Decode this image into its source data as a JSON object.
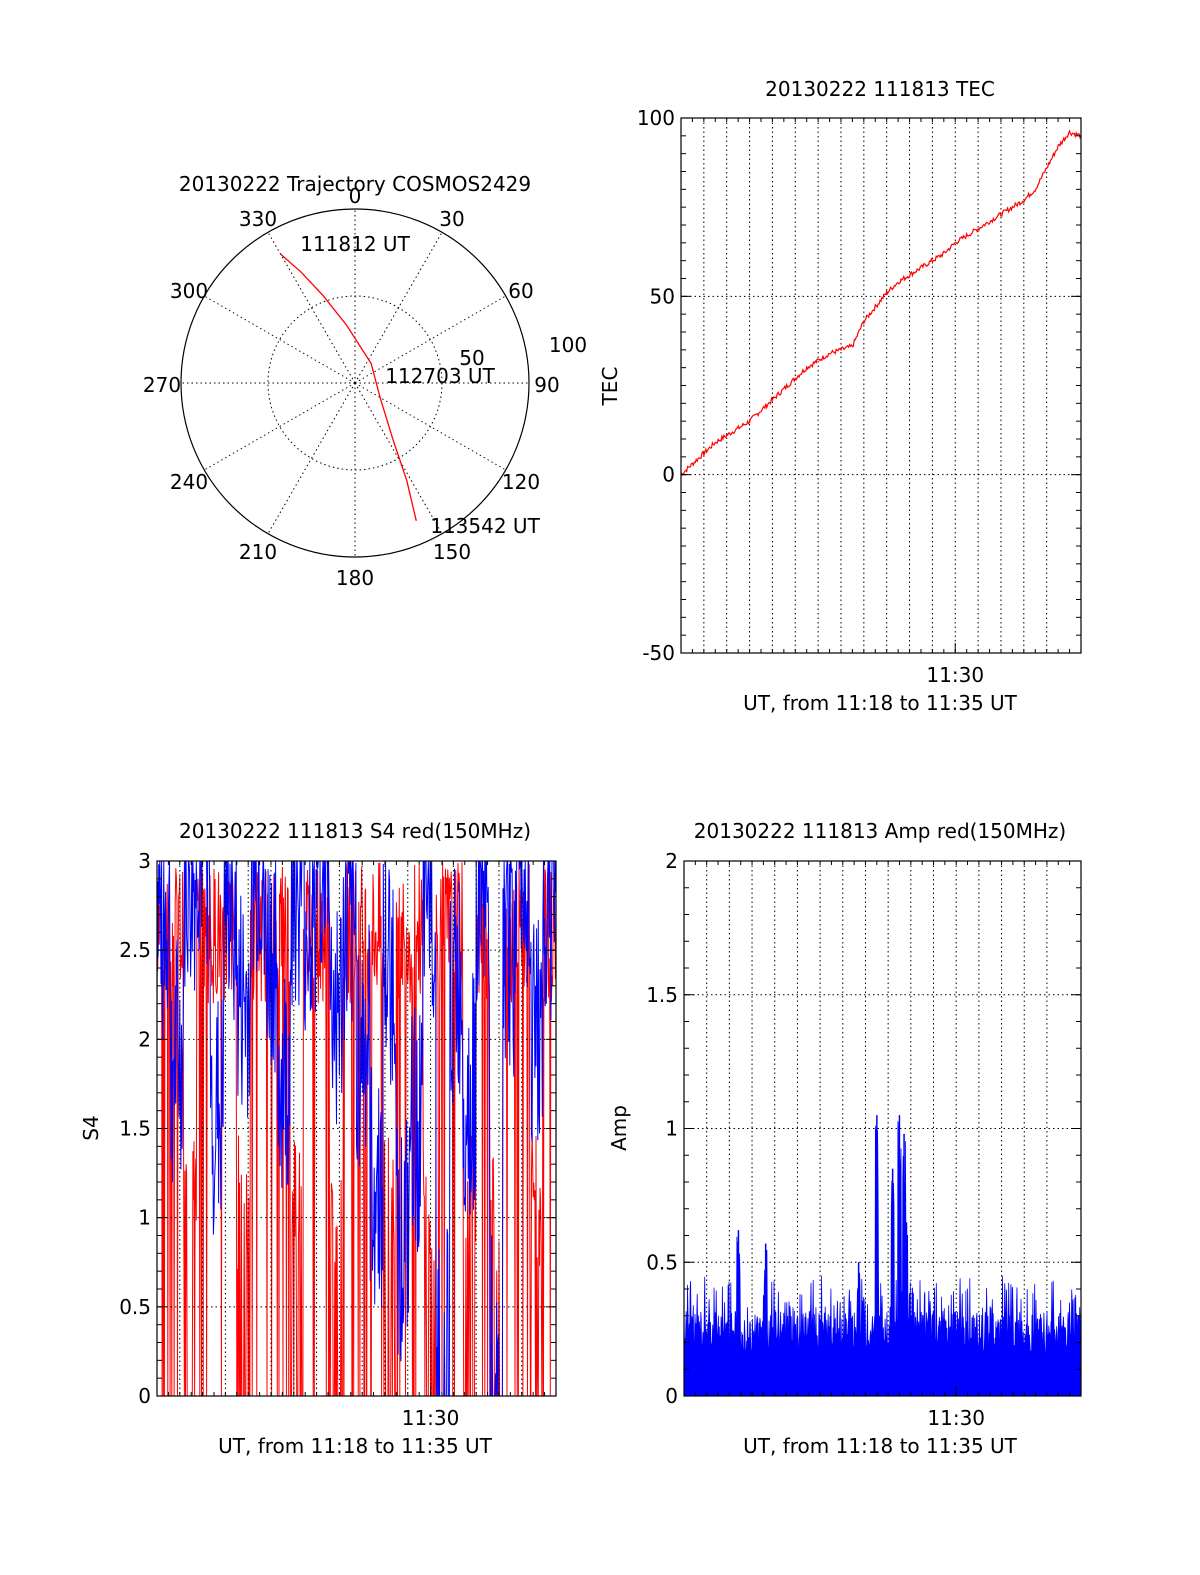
{
  "chart_data": [
    {
      "type": "polar",
      "title": "20130222 Trajectory COSMOS2429",
      "angle_labels": [
        "0",
        "30",
        "60",
        "90",
        "120",
        "150",
        "180",
        "210",
        "240",
        "270",
        "300",
        "330"
      ],
      "radius_labels": [
        "50",
        "100"
      ],
      "series": [
        {
          "color": "#ff0000",
          "points": [
            {
              "az": 330,
              "el": 13
            },
            {
              "az": 334,
              "el": 26
            },
            {
              "az": 340,
              "el": 42
            },
            {
              "az": 352,
              "el": 60
            },
            {
              "az": 40,
              "el": 77
            },
            {
              "az": 120,
              "el": 75
            },
            {
              "az": 146,
              "el": 55
            },
            {
              "az": 152,
              "el": 33
            },
            {
              "az": 156,
              "el": 12
            }
          ]
        }
      ],
      "annotations": [
        {
          "text": "111812 UT",
          "az": 338,
          "el": 2
        },
        {
          "text": "112703 UT",
          "az": 78,
          "el": 72
        },
        {
          "text": "113542 UT",
          "az": 145,
          "el": 0
        }
      ]
    },
    {
      "type": "line",
      "title": "20130222 111813 TEC",
      "ylabel": "TEC",
      "xlabel": "UT, from 11:18 to 11:35 UT",
      "ylim": [
        -50,
        100
      ],
      "yticks": [
        "-50",
        "0",
        "50",
        "100"
      ],
      "xticks": [
        {
          "label": "11:30",
          "t": 11.5
        }
      ],
      "xrange": [
        11.3,
        11.5917
      ],
      "series_color": "#ff0000",
      "x": [
        11.3,
        11.3083,
        11.3167,
        11.325,
        11.3333,
        11.3417,
        11.35,
        11.3583,
        11.3667,
        11.375,
        11.3833,
        11.3917,
        11.4,
        11.4083,
        11.4167,
        11.425,
        11.4333,
        11.4417,
        11.45,
        11.4583,
        11.4667,
        11.475,
        11.4833,
        11.4917,
        11.5,
        11.5083,
        11.5167,
        11.525,
        11.5333,
        11.5417,
        11.55,
        11.5583,
        11.5667,
        11.575,
        11.5833,
        11.5917
      ],
      "values": [
        0,
        3,
        6,
        9,
        11,
        13,
        15,
        18,
        21,
        24,
        27,
        30,
        32,
        34,
        35,
        36,
        43,
        47,
        51,
        54,
        56,
        58,
        60,
        62,
        65,
        67,
        69,
        71,
        73,
        75,
        77,
        80,
        86,
        92,
        96,
        95
      ]
    },
    {
      "type": "line",
      "title": "20130222 111813 S4 red(150MHz)",
      "ylabel": "S4",
      "xlabel": "UT, from 11:18 to 11:35 UT",
      "ylim": [
        0,
        3
      ],
      "yticks": [
        "0",
        "0.5",
        "1",
        "1.5",
        "2",
        "2.5",
        "3"
      ],
      "xticks": [
        {
          "label": "11:30",
          "t": 11.5
        }
      ],
      "xrange": [
        11.3,
        11.5917
      ],
      "series": [
        {
          "color": "#ff0000",
          "description_values": [
            3.0,
            2.9,
            0.0,
            2.8,
            3.0,
            2.6,
            0.0,
            2.7,
            2.9,
            1.4,
            0.0,
            2.8,
            3.0,
            0.0,
            2.5,
            3.0,
            2.2,
            0.0,
            2.9,
            2.4,
            0.0,
            3.0,
            1.6,
            0.0,
            2.7,
            0.0,
            3.0,
            2.8,
            0.0,
            3.0
          ]
        },
        {
          "color": "#0000ff",
          "description_values": [
            2.4,
            1.6,
            2.6,
            2.8,
            1.3,
            2.5,
            1.9,
            2.7,
            2.2,
            1.5,
            2.6,
            2.4,
            2.8,
            1.9,
            2.3,
            1.7,
            0.9,
            2.1,
            0.6,
            1.2,
            2.5,
            0.0,
            2.0,
            1.4,
            2.6,
            0.0,
            2.2,
            2.7,
            1.8,
            2.5
          ]
        }
      ]
    },
    {
      "type": "line",
      "title": "20130222 111813 Amp red(150MHz)",
      "ylabel": "Amp",
      "xlabel": "UT, from 11:18 to 11:35 UT",
      "ylim": [
        0,
        2
      ],
      "yticks": [
        "0",
        "0.5",
        "1",
        "1.5",
        "2"
      ],
      "xticks": [
        {
          "label": "11:30",
          "t": 11.5
        }
      ],
      "xrange": [
        11.3,
        11.5917
      ],
      "series_color": "#0000ff",
      "spikes": [
        {
          "t": 11.4417,
          "v": 1.05
        },
        {
          "t": 11.4583,
          "v": 1.05
        },
        {
          "t": 11.4617,
          "v": 0.98
        },
        {
          "t": 11.4533,
          "v": 0.85
        },
        {
          "t": 11.4633,
          "v": 0.65
        },
        {
          "t": 11.34,
          "v": 0.62
        },
        {
          "t": 11.36,
          "v": 0.57
        },
        {
          "t": 11.4283,
          "v": 0.5
        }
      ],
      "baseline": {
        "low": 0.15,
        "high": 0.45
      }
    }
  ]
}
